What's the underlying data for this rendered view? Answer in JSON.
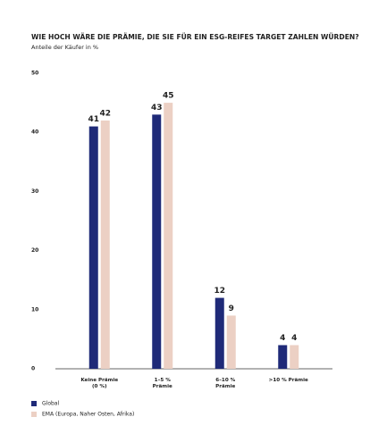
{
  "chart_data": {
    "type": "bar",
    "title": "WIE HOCH WÄRE DIE PRÄMIE, DIE SIE FÜR EIN ESG-REIFES TARGET ZAHLEN WÜRDEN?",
    "subtitle": "Anteile der Käufer in %",
    "categories": [
      "Keine Prämie\n(0 %)",
      "1–5 %\nPrämie",
      "6–10 %\nPrämie",
      ">10 % Prämie"
    ],
    "series": [
      {
        "name": "Global",
        "color": "#1f2a78",
        "values": [
          41,
          43,
          12,
          4
        ]
      },
      {
        "name": "EMA (Europa, Naher Osten, Afrika)",
        "color": "#ecd0c4",
        "values": [
          42,
          45,
          9,
          4
        ]
      }
    ],
    "ylim": [
      0,
      50
    ],
    "yticks": [
      0,
      10,
      20,
      30,
      40,
      50
    ],
    "grid": false,
    "legend": "bottom-left"
  }
}
